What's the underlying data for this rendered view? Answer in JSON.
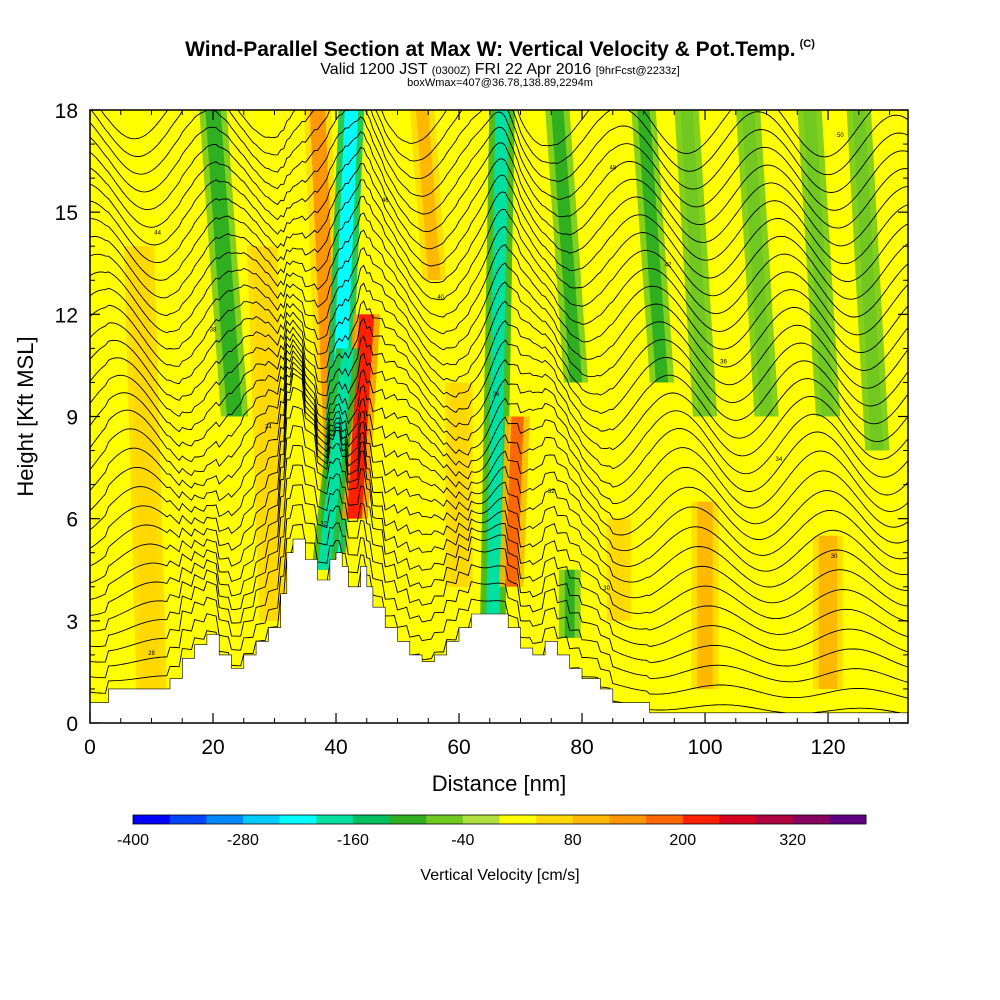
{
  "header": {
    "title": "Wind-Parallel Section at Max W: Vertical Velocity & Pot.Temp.",
    "copyright": "(C)",
    "valid_prefix": "Valid 1200 JST",
    "valid_utc": "(0300Z)",
    "valid_date": "FRI 22 Apr 2016",
    "forecast": "[9hrFcst@2233z]",
    "boxmax": "boxWmax=407@36.78,138.89,2294m"
  },
  "chart_data": {
    "type": "heatmap",
    "xlabel": "Distance [nm]",
    "ylabel": "Height [Kft MSL]",
    "xlim": [
      0,
      133
    ],
    "ylim": [
      0,
      18
    ],
    "x_ticks": [
      "0",
      "20",
      "40",
      "60",
      "80",
      "100",
      "120"
    ],
    "y_ticks": [
      "0",
      "3",
      "6",
      "9",
      "12",
      "15",
      "18"
    ],
    "colorbar": {
      "label": "Vertical Velocity [cm/s]",
      "levels": [
        -400,
        -360,
        -320,
        -280,
        -240,
        -200,
        -160,
        -120,
        -80,
        -40,
        0,
        40,
        80,
        120,
        160,
        200,
        240,
        280,
        320,
        360
      ],
      "tick_labels": [
        "-400",
        "-280",
        "-160",
        "-40",
        "80",
        "200",
        "320"
      ],
      "colors": [
        "#0000ff",
        "#0044ff",
        "#0088ff",
        "#00ccff",
        "#00ffff",
        "#00e0a0",
        "#00c060",
        "#30b020",
        "#70c820",
        "#b0e040",
        "#ffff00",
        "#ffd800",
        "#ffb800",
        "#ff9800",
        "#ff6800",
        "#ff2000",
        "#d80020",
        "#b00040",
        "#880060",
        "#600080"
      ]
    },
    "terrain_profile": [
      [
        0,
        0.6
      ],
      [
        3,
        0.6
      ],
      [
        3,
        1.0
      ],
      [
        13,
        1.0
      ],
      [
        13,
        1.3
      ],
      [
        15,
        1.3
      ],
      [
        15,
        1.9
      ],
      [
        17,
        1.9
      ],
      [
        17,
        2.3
      ],
      [
        19,
        2.3
      ],
      [
        19,
        2.6
      ],
      [
        21,
        2.6
      ],
      [
        21,
        2.0
      ],
      [
        23,
        2.0
      ],
      [
        23,
        1.6
      ],
      [
        25,
        1.6
      ],
      [
        25,
        2.0
      ],
      [
        27,
        2.0
      ],
      [
        27,
        2.4
      ],
      [
        29,
        2.4
      ],
      [
        29,
        2.8
      ],
      [
        31,
        2.8
      ],
      [
        31,
        3.8
      ],
      [
        32,
        3.8
      ],
      [
        32,
        5.0
      ],
      [
        33,
        5.0
      ],
      [
        33,
        5.4
      ],
      [
        35,
        5.4
      ],
      [
        35,
        4.8
      ],
      [
        37,
        4.8
      ],
      [
        37,
        4.2
      ],
      [
        39,
        4.2
      ],
      [
        39,
        4.8
      ],
      [
        40,
        4.8
      ],
      [
        40,
        5.0
      ],
      [
        41,
        5.0
      ],
      [
        41,
        4.6
      ],
      [
        42,
        4.6
      ],
      [
        42,
        4.0
      ],
      [
        44,
        4.0
      ],
      [
        44,
        4.6
      ],
      [
        45,
        4.6
      ],
      [
        45,
        4.0
      ],
      [
        46,
        4.0
      ],
      [
        46,
        3.4
      ],
      [
        48,
        3.4
      ],
      [
        48,
        2.8
      ],
      [
        50,
        2.8
      ],
      [
        50,
        2.4
      ],
      [
        52,
        2.4
      ],
      [
        52,
        2.0
      ],
      [
        54,
        2.0
      ],
      [
        54,
        1.8
      ],
      [
        56,
        1.8
      ],
      [
        56,
        2.0
      ],
      [
        58,
        2.0
      ],
      [
        58,
        2.4
      ],
      [
        60,
        2.4
      ],
      [
        60,
        2.8
      ],
      [
        62,
        2.8
      ],
      [
        62,
        3.2
      ],
      [
        68,
        3.2
      ],
      [
        68,
        2.8
      ],
      [
        70,
        2.8
      ],
      [
        70,
        2.2
      ],
      [
        72,
        2.2
      ],
      [
        72,
        2.0
      ],
      [
        74,
        2.0
      ],
      [
        74,
        2.4
      ],
      [
        76,
        2.4
      ],
      [
        76,
        2.0
      ],
      [
        78,
        2.0
      ],
      [
        78,
        1.6
      ],
      [
        80,
        1.6
      ],
      [
        80,
        1.3
      ],
      [
        83,
        1.3
      ],
      [
        83,
        1.0
      ],
      [
        85,
        1.0
      ],
      [
        85,
        0.6
      ],
      [
        91,
        0.6
      ],
      [
        91,
        0.3
      ],
      [
        133,
        0.3
      ]
    ],
    "w_bands": [
      {
        "x": 20,
        "width": 2.5,
        "lean": -3.5,
        "top": 18,
        "bottom": 9,
        "w": -90
      },
      {
        "x": 37,
        "width": 2.5,
        "lean": -3.0,
        "top": 18,
        "bottom": 5,
        "w": 130
      },
      {
        "x": 42.5,
        "width": 2.2,
        "lean": 3.0,
        "top": 18,
        "bottom": 5,
        "w": -240
      },
      {
        "x": 45,
        "width": 2.4,
        "lean": 2.0,
        "top": 12,
        "bottom": 6,
        "w": 230
      },
      {
        "x": 42,
        "width": 2.0,
        "lean": 4.0,
        "top": 11,
        "bottom": 4.5,
        "w": -170
      },
      {
        "x": 54,
        "width": 2.0,
        "lean": -2.0,
        "top": 18,
        "bottom": 13,
        "w": 100
      },
      {
        "x": 67,
        "width": 2.2,
        "lean": 1.5,
        "top": 18,
        "bottom": 3,
        "w": -180
      },
      {
        "x": 69.5,
        "width": 2.0,
        "lean": 1.0,
        "top": 9,
        "bottom": 4,
        "w": 170
      },
      {
        "x": 76,
        "width": 2.0,
        "lean": -3.0,
        "top": 18,
        "bottom": 10,
        "w": -90
      },
      {
        "x": 90,
        "width": 2.0,
        "lean": -3.0,
        "top": 18,
        "bottom": 10,
        "w": -90
      },
      {
        "x": 97,
        "width": 2.0,
        "lean": -3.0,
        "top": 18,
        "bottom": 9,
        "w": -80
      },
      {
        "x": 107,
        "width": 2.0,
        "lean": -3.0,
        "top": 18,
        "bottom": 9,
        "w": -80
      },
      {
        "x": 117,
        "width": 2.0,
        "lean": -3.0,
        "top": 18,
        "bottom": 9,
        "w": -80
      },
      {
        "x": 125,
        "width": 2.0,
        "lean": -3.0,
        "top": 18,
        "bottom": 8,
        "w": -80
      },
      {
        "x": 78,
        "width": 1.6,
        "lean": 0.0,
        "top": 4.5,
        "bottom": 2.5,
        "w": -110
      },
      {
        "x": 100,
        "width": 2.5,
        "lean": 0.0,
        "top": 6.5,
        "bottom": 1.0,
        "w": 80
      },
      {
        "x": 120,
        "width": 3.0,
        "lean": 0.0,
        "top": 5.5,
        "bottom": 1.0,
        "w": 80
      },
      {
        "x": 28,
        "width": 3.0,
        "lean": -2.0,
        "top": 14,
        "bottom": 3.0,
        "w": 60
      },
      {
        "x": 8,
        "width": 3.0,
        "lean": -2.0,
        "top": 14,
        "bottom": 1.0,
        "w": 50
      },
      {
        "x": 60,
        "width": 2.5,
        "lean": 0.0,
        "top": 10,
        "bottom": 4.0,
        "w": 50
      },
      {
        "x": 86,
        "width": 2.0,
        "lean": 0.0,
        "top": 6,
        "bottom": 3.0,
        "w": 50
      }
    ],
    "theta_contours": {
      "count": 34,
      "labels": [
        "28",
        "28",
        "30",
        "30",
        "32",
        "32",
        "34",
        "34",
        "36",
        "36",
        "38",
        "40",
        "42",
        "44",
        "46",
        "48",
        "50"
      ]
    }
  }
}
